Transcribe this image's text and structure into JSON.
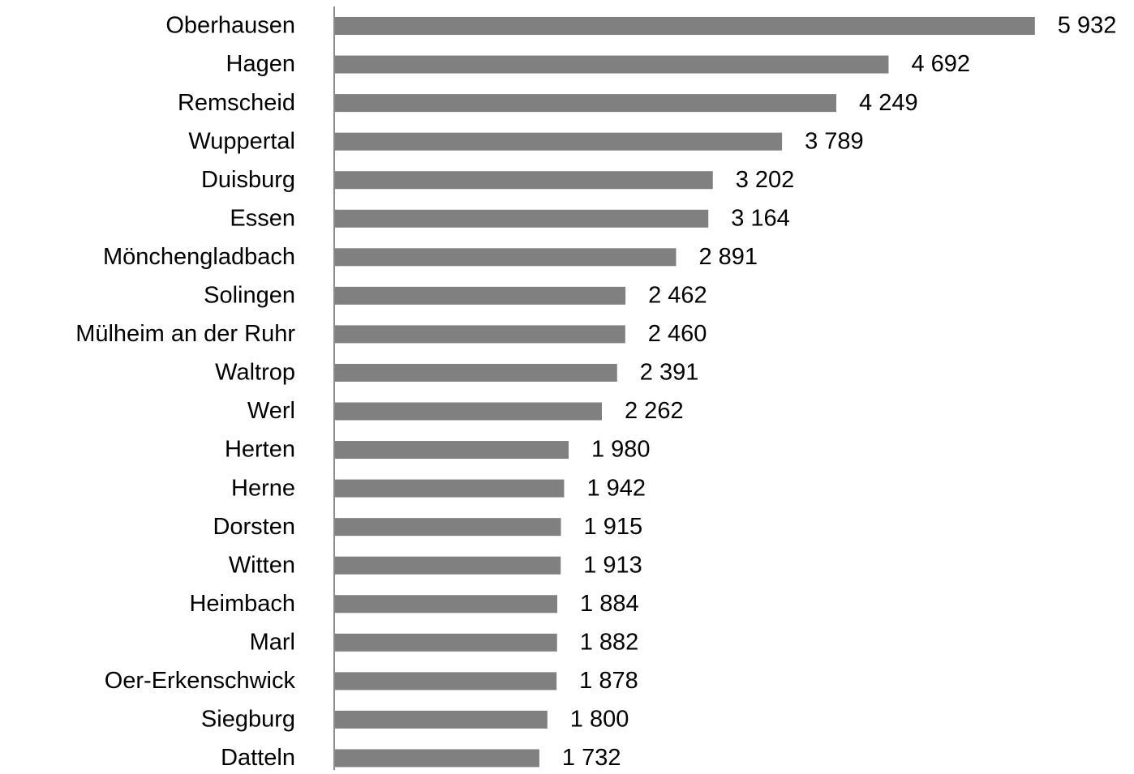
{
  "chart_data": {
    "type": "bar",
    "orientation": "horizontal",
    "color": "#808080",
    "categories": [
      "Oberhausen",
      "Hagen",
      "Remscheid",
      "Wuppertal",
      "Duisburg",
      "Essen",
      "Mönchengladbach",
      "Solingen",
      "Mülheim an der Ruhr",
      "Waltrop",
      "Werl",
      "Herten",
      "Herne",
      "Dorsten",
      "Witten",
      "Heimbach",
      "Marl",
      "Oer-Erkenschwick",
      "Siegburg",
      "Datteln"
    ],
    "values": [
      5932,
      4692,
      4249,
      3789,
      3202,
      3164,
      2891,
      2462,
      2460,
      2391,
      2262,
      1980,
      1942,
      1915,
      1913,
      1884,
      1882,
      1878,
      1800,
      1732
    ],
    "value_labels": [
      "5 932",
      "4 692",
      "4 249",
      "3 789",
      "3 202",
      "3 164",
      "2 891",
      "2 462",
      "2 460",
      "2 391",
      "2 262",
      "1 980",
      "1 942",
      "1 915",
      "1 913",
      "1 884",
      "1 882",
      "1 878",
      "1 800",
      "1 732"
    ]
  }
}
